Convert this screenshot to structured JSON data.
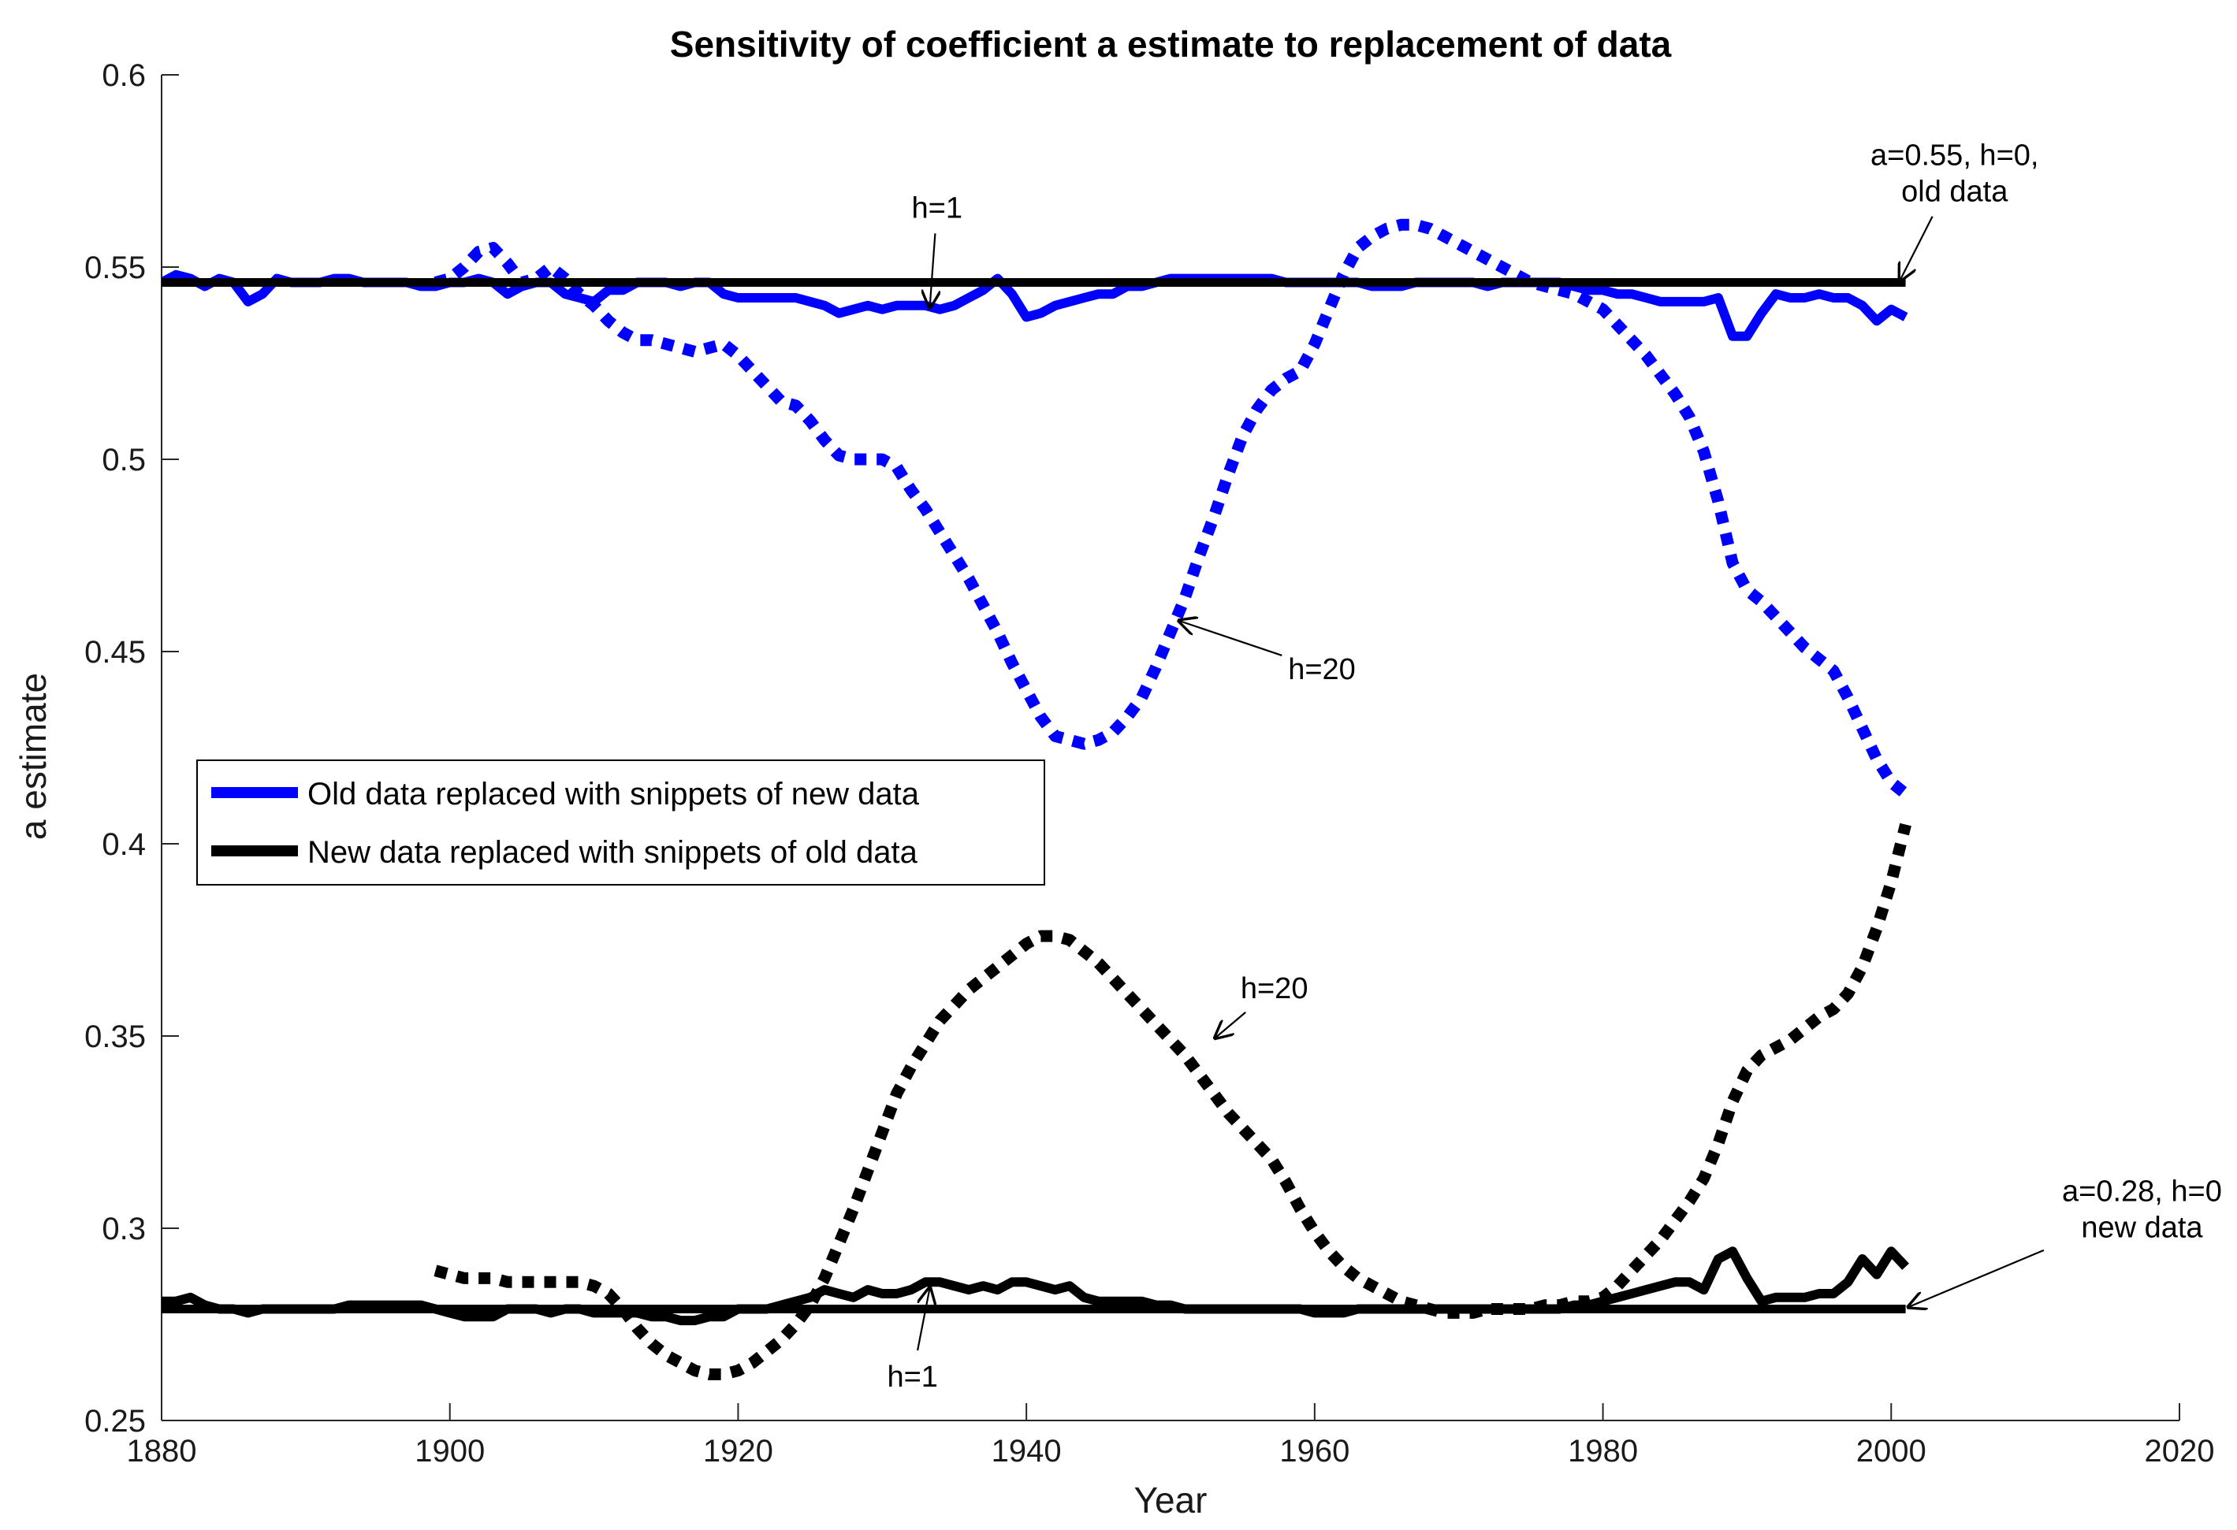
{
  "chart_data": {
    "type": "line",
    "title": "Sensitivity of coefficient a estimate to replacement of data",
    "xlabel": "Year",
    "ylabel": "a estimate",
    "xlim": [
      1880,
      2020
    ],
    "ylim": [
      0.25,
      0.6
    ],
    "xticks": [
      1880,
      1900,
      1920,
      1940,
      1960,
      1980,
      2000,
      2020
    ],
    "yticks": [
      0.25,
      0.3,
      0.35,
      0.4,
      0.45,
      0.5,
      0.55,
      0.6
    ],
    "ytick_labels": [
      "0.25",
      "0.3",
      "0.35",
      "0.4",
      "0.45",
      "0.5",
      "0.55",
      "0.6"
    ],
    "legend": {
      "position": "center-left",
      "entries": [
        {
          "name": "Old data replaced with snippets of new data",
          "color": "#0000ff"
        },
        {
          "name": "New data replaced with snippets of old data",
          "color": "#000000"
        }
      ]
    },
    "series": [
      {
        "name": "a=0.55, h=0, old data",
        "color": "#000000",
        "style": "solid",
        "role": "baseline",
        "x": [
          1880,
          2001
        ],
        "y": [
          0.546,
          0.546
        ]
      },
      {
        "name": "a=0.28, h=0 new data",
        "color": "#000000",
        "style": "solid",
        "role": "baseline",
        "x": [
          1880,
          2001
        ],
        "y": [
          0.279,
          0.279
        ]
      },
      {
        "name": "Old data replaced with snippets of new data (h=1)",
        "color": "#0000ff",
        "style": "solid",
        "x": [
          1880,
          1881,
          1882,
          1883,
          1884,
          1885,
          1886,
          1887,
          1888,
          1889,
          1890,
          1891,
          1892,
          1893,
          1894,
          1895,
          1896,
          1897,
          1898,
          1899,
          1900,
          1901,
          1902,
          1903,
          1904,
          1905,
          1906,
          1907,
          1908,
          1909,
          1910,
          1911,
          1912,
          1913,
          1914,
          1915,
          1916,
          1917,
          1918,
          1919,
          1920,
          1921,
          1922,
          1923,
          1924,
          1925,
          1926,
          1927,
          1928,
          1929,
          1930,
          1931,
          1932,
          1933,
          1934,
          1935,
          1936,
          1937,
          1938,
          1939,
          1940,
          1941,
          1942,
          1943,
          1944,
          1945,
          1946,
          1947,
          1948,
          1949,
          1950,
          1951,
          1952,
          1953,
          1954,
          1955,
          1956,
          1957,
          1958,
          1959,
          1960,
          1961,
          1962,
          1963,
          1964,
          1965,
          1966,
          1967,
          1968,
          1969,
          1970,
          1971,
          1972,
          1973,
          1974,
          1975,
          1976,
          1977,
          1978,
          1979,
          1980,
          1981,
          1982,
          1983,
          1984,
          1985,
          1986,
          1987,
          1988,
          1989,
          1990,
          1991,
          1992,
          1993,
          1994,
          1995,
          1996,
          1997,
          1998,
          1999,
          2000,
          2001
        ],
        "y": [
          0.546,
          0.548,
          0.547,
          0.545,
          0.547,
          0.546,
          0.541,
          0.543,
          0.547,
          0.546,
          0.546,
          0.546,
          0.547,
          0.547,
          0.546,
          0.546,
          0.546,
          0.546,
          0.545,
          0.545,
          0.546,
          0.546,
          0.547,
          0.546,
          0.543,
          0.545,
          0.546,
          0.546,
          0.543,
          0.542,
          0.541,
          0.544,
          0.544,
          0.546,
          0.546,
          0.546,
          0.545,
          0.546,
          0.546,
          0.543,
          0.542,
          0.542,
          0.542,
          0.542,
          0.542,
          0.541,
          0.54,
          0.538,
          0.539,
          0.54,
          0.539,
          0.54,
          0.54,
          0.54,
          0.539,
          0.54,
          0.542,
          0.544,
          0.547,
          0.543,
          0.537,
          0.538,
          0.54,
          0.541,
          0.542,
          0.543,
          0.543,
          0.545,
          0.545,
          0.546,
          0.547,
          0.547,
          0.547,
          0.547,
          0.547,
          0.547,
          0.547,
          0.547,
          0.546,
          0.546,
          0.546,
          0.546,
          0.546,
          0.546,
          0.545,
          0.545,
          0.545,
          0.546,
          0.546,
          0.546,
          0.546,
          0.546,
          0.545,
          0.546,
          0.546,
          0.546,
          0.546,
          0.546,
          0.545,
          0.544,
          0.544,
          0.543,
          0.543,
          0.542,
          0.541,
          0.541,
          0.541,
          0.541,
          0.542,
          0.532,
          0.532,
          0.538,
          0.543,
          0.542,
          0.542,
          0.543,
          0.542,
          0.542,
          0.54,
          0.536,
          0.539,
          0.537
        ],
        "annotation": "h=1"
      },
      {
        "name": "Old data replaced with snippets of new data (h=20)",
        "color": "#0000ff",
        "style": "dotted",
        "x": [
          1899,
          1900,
          1901,
          1902,
          1903,
          1904,
          1905,
          1906,
          1907,
          1908,
          1909,
          1910,
          1911,
          1912,
          1913,
          1914,
          1915,
          1916,
          1917,
          1918,
          1919,
          1920,
          1921,
          1922,
          1923,
          1924,
          1925,
          1926,
          1927,
          1928,
          1929,
          1930,
          1931,
          1932,
          1933,
          1934,
          1935,
          1936,
          1937,
          1938,
          1939,
          1940,
          1941,
          1942,
          1943,
          1944,
          1945,
          1946,
          1947,
          1948,
          1949,
          1950,
          1951,
          1952,
          1953,
          1954,
          1955,
          1956,
          1957,
          1958,
          1959,
          1960,
          1961,
          1962,
          1963,
          1964,
          1965,
          1966,
          1967,
          1968,
          1969,
          1970,
          1971,
          1972,
          1973,
          1974,
          1975,
          1976,
          1977,
          1978,
          1979,
          1980,
          1981,
          1982,
          1983,
          1984,
          1985,
          1986,
          1987,
          1988,
          1989,
          1990,
          1991,
          1992,
          1993,
          1994,
          1995,
          1996,
          1997,
          1998,
          1999,
          2000,
          2001
        ],
        "y": [
          0.546,
          0.547,
          0.55,
          0.554,
          0.555,
          0.551,
          0.546,
          0.547,
          0.55,
          0.547,
          0.543,
          0.54,
          0.536,
          0.533,
          0.531,
          0.531,
          0.53,
          0.529,
          0.528,
          0.529,
          0.53,
          0.527,
          0.523,
          0.519,
          0.515,
          0.514,
          0.51,
          0.505,
          0.501,
          0.5,
          0.5,
          0.5,
          0.498,
          0.492,
          0.487,
          0.481,
          0.475,
          0.469,
          0.462,
          0.455,
          0.447,
          0.44,
          0.433,
          0.428,
          0.427,
          0.426,
          0.427,
          0.429,
          0.433,
          0.438,
          0.446,
          0.455,
          0.464,
          0.475,
          0.485,
          0.496,
          0.506,
          0.513,
          0.518,
          0.521,
          0.523,
          0.53,
          0.539,
          0.548,
          0.555,
          0.558,
          0.56,
          0.561,
          0.561,
          0.56,
          0.558,
          0.556,
          0.554,
          0.552,
          0.55,
          0.548,
          0.546,
          0.545,
          0.544,
          0.543,
          0.541,
          0.539,
          0.535,
          0.531,
          0.527,
          0.522,
          0.517,
          0.511,
          0.502,
          0.489,
          0.473,
          0.466,
          0.463,
          0.459,
          0.455,
          0.451,
          0.448,
          0.445,
          0.438,
          0.43,
          0.422,
          0.416,
          0.413
        ],
        "annotation": "h=20"
      },
      {
        "name": "New data replaced with snippets of old data (h=1)",
        "color": "#000000",
        "style": "solid",
        "x": [
          1880,
          1881,
          1882,
          1883,
          1884,
          1885,
          1886,
          1887,
          1888,
          1889,
          1890,
          1891,
          1892,
          1893,
          1894,
          1895,
          1896,
          1897,
          1898,
          1899,
          1900,
          1901,
          1902,
          1903,
          1904,
          1905,
          1906,
          1907,
          1908,
          1909,
          1910,
          1911,
          1912,
          1913,
          1914,
          1915,
          1916,
          1917,
          1918,
          1919,
          1920,
          1921,
          1922,
          1923,
          1924,
          1925,
          1926,
          1927,
          1928,
          1929,
          1930,
          1931,
          1932,
          1933,
          1934,
          1935,
          1936,
          1937,
          1938,
          1939,
          1940,
          1941,
          1942,
          1943,
          1944,
          1945,
          1946,
          1947,
          1948,
          1949,
          1950,
          1951,
          1952,
          1953,
          1954,
          1955,
          1956,
          1957,
          1958,
          1959,
          1960,
          1961,
          1962,
          1963,
          1964,
          1965,
          1966,
          1967,
          1968,
          1969,
          1970,
          1971,
          1972,
          1973,
          1974,
          1975,
          1976,
          1977,
          1978,
          1979,
          1980,
          1981,
          1982,
          1983,
          1984,
          1985,
          1986,
          1987,
          1988,
          1989,
          1990,
          1991,
          1992,
          1993,
          1994,
          1995,
          1996,
          1997,
          1998,
          1999,
          2000,
          2001
        ],
        "y": [
          0.281,
          0.281,
          0.282,
          0.28,
          0.279,
          0.279,
          0.278,
          0.279,
          0.279,
          0.279,
          0.279,
          0.279,
          0.279,
          0.28,
          0.28,
          0.28,
          0.28,
          0.28,
          0.28,
          0.279,
          0.278,
          0.277,
          0.277,
          0.277,
          0.279,
          0.279,
          0.279,
          0.278,
          0.279,
          0.279,
          0.278,
          0.278,
          0.278,
          0.278,
          0.277,
          0.277,
          0.276,
          0.276,
          0.277,
          0.277,
          0.279,
          0.279,
          0.279,
          0.28,
          0.281,
          0.282,
          0.284,
          0.283,
          0.282,
          0.284,
          0.283,
          0.283,
          0.284,
          0.286,
          0.286,
          0.285,
          0.284,
          0.285,
          0.284,
          0.286,
          0.286,
          0.285,
          0.284,
          0.285,
          0.282,
          0.281,
          0.281,
          0.281,
          0.281,
          0.28,
          0.28,
          0.279,
          0.279,
          0.279,
          0.279,
          0.279,
          0.279,
          0.279,
          0.279,
          0.279,
          0.278,
          0.278,
          0.278,
          0.279,
          0.279,
          0.279,
          0.279,
          0.279,
          0.279,
          0.279,
          0.279,
          0.279,
          0.279,
          0.279,
          0.279,
          0.279,
          0.279,
          0.279,
          0.28,
          0.28,
          0.281,
          0.282,
          0.283,
          0.284,
          0.285,
          0.286,
          0.286,
          0.284,
          0.292,
          0.294,
          0.287,
          0.281,
          0.282,
          0.282,
          0.282,
          0.283,
          0.283,
          0.286,
          0.292,
          0.288,
          0.294,
          0.29
        ],
        "annotation": "h=1"
      },
      {
        "name": "New data replaced with snippets of old data (h=20)",
        "color": "#000000",
        "style": "dotted",
        "x": [
          1899,
          1900,
          1901,
          1902,
          1903,
          1904,
          1905,
          1906,
          1907,
          1908,
          1909,
          1910,
          1911,
          1912,
          1913,
          1914,
          1915,
          1916,
          1917,
          1918,
          1919,
          1920,
          1921,
          1922,
          1923,
          1924,
          1925,
          1926,
          1927,
          1928,
          1929,
          1930,
          1931,
          1932,
          1933,
          1934,
          1935,
          1936,
          1937,
          1938,
          1939,
          1940,
          1941,
          1942,
          1943,
          1944,
          1945,
          1946,
          1947,
          1948,
          1949,
          1950,
          1951,
          1952,
          1953,
          1954,
          1955,
          1956,
          1957,
          1958,
          1959,
          1960,
          1961,
          1962,
          1963,
          1964,
          1965,
          1966,
          1967,
          1968,
          1969,
          1970,
          1971,
          1972,
          1973,
          1974,
          1975,
          1976,
          1977,
          1978,
          1979,
          1980,
          1981,
          1982,
          1983,
          1984,
          1985,
          1986,
          1987,
          1988,
          1989,
          1990,
          1991,
          1992,
          1993,
          1994,
          1995,
          1996,
          1997,
          1998,
          1999,
          2000,
          2001
        ],
        "y": [
          0.289,
          0.288,
          0.287,
          0.287,
          0.287,
          0.286,
          0.286,
          0.286,
          0.286,
          0.286,
          0.286,
          0.285,
          0.283,
          0.279,
          0.274,
          0.27,
          0.267,
          0.265,
          0.263,
          0.262,
          0.262,
          0.263,
          0.265,
          0.268,
          0.271,
          0.275,
          0.28,
          0.287,
          0.296,
          0.305,
          0.315,
          0.325,
          0.335,
          0.342,
          0.348,
          0.354,
          0.358,
          0.362,
          0.365,
          0.368,
          0.371,
          0.374,
          0.376,
          0.376,
          0.375,
          0.372,
          0.369,
          0.365,
          0.361,
          0.357,
          0.353,
          0.349,
          0.345,
          0.34,
          0.335,
          0.33,
          0.326,
          0.322,
          0.318,
          0.312,
          0.305,
          0.299,
          0.294,
          0.29,
          0.287,
          0.285,
          0.283,
          0.281,
          0.28,
          0.279,
          0.278,
          0.278,
          0.278,
          0.279,
          0.279,
          0.279,
          0.279,
          0.28,
          0.28,
          0.281,
          0.281,
          0.282,
          0.285,
          0.289,
          0.293,
          0.297,
          0.302,
          0.307,
          0.313,
          0.322,
          0.333,
          0.341,
          0.345,
          0.347,
          0.349,
          0.352,
          0.355,
          0.357,
          0.361,
          0.368,
          0.378,
          0.39,
          0.405
        ],
        "annotation": "h=20"
      }
    ],
    "annotations": [
      {
        "text": "h=1",
        "x": 1933.8,
        "y": 0.5655,
        "target_x": 1933.3,
        "target_y": 0.5395
      },
      {
        "text": "h=20",
        "x": 1960.5,
        "y": 0.4455,
        "target_x": 1950.6,
        "target_y": 0.458
      },
      {
        "text": "h=20",
        "x": 1957.2,
        "y": 0.3625,
        "target_x": 1953.1,
        "target_y": 0.3495
      },
      {
        "text": "h=1",
        "x": 1932.1,
        "y": 0.2615,
        "target_x": 1933.3,
        "target_y": 0.2845
      },
      {
        "text_lines": [
          "a=0.55, h=0,",
          "old data"
        ],
        "x": 2004.4,
        "y": 0.5745,
        "target_x": 2000.6,
        "target_y": 0.5465
      },
      {
        "text_lines": [
          "a=0.28, h=0",
          "new data"
        ],
        "x": 2017.4,
        "y": 0.305,
        "target_x": 2001.2,
        "target_y": 0.2795
      }
    ]
  }
}
